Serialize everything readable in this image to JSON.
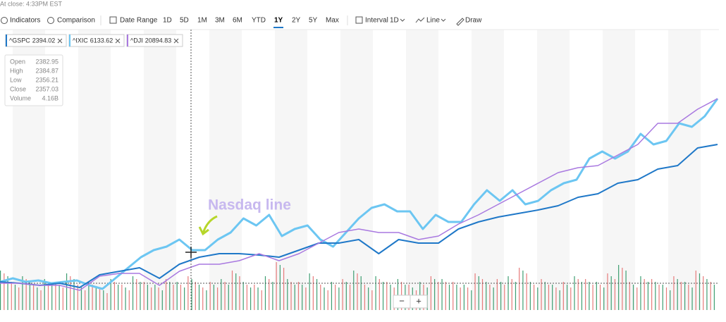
{
  "header": {
    "status": "At close: 4:33PM EST"
  },
  "toolbar": {
    "indicators": "Indicators",
    "comparison": "Comparison",
    "date_range": "Date Range",
    "ranges": [
      "1D",
      "5D",
      "1M",
      "3M",
      "6M",
      "YTD",
      "1Y",
      "2Y",
      "5Y",
      "Max"
    ],
    "active_range": "1Y",
    "interval": "Interval",
    "interval_value": "1D",
    "line": "Line",
    "draw": "Draw"
  },
  "legend": [
    {
      "symbol": "^GSPC",
      "price": "2394.02",
      "color": "#1f78c8"
    },
    {
      "symbol": "^IXIC",
      "price": "6133.62",
      "color": "#6cc6f2"
    },
    {
      "symbol": "^DJI",
      "price": "20894.83",
      "color": "#a979e0"
    }
  ],
  "tooltip": {
    "rows": [
      [
        "Open",
        "2382.95"
      ],
      [
        "High",
        "2384.87"
      ],
      [
        "Low",
        "2356.21"
      ],
      [
        "Close",
        "2357.03"
      ],
      [
        "Volume",
        "4.16B"
      ]
    ]
  },
  "annotation": "Nasdaq line",
  "zoom": {
    "minus": "−",
    "plus": "+"
  },
  "chart": {
    "ylim": [
      0,
      100
    ],
    "series": [
      {
        "name": "^IXIC",
        "color": "#6cc6f2",
        "values": [
          10,
          11.25,
          10,
          10.5,
          9.5,
          10,
          10.5,
          8.75,
          7.5,
          11.25,
          15,
          18.75,
          21.25,
          22.5,
          25,
          21.25,
          21.25,
          25,
          27.5,
          32.5,
          30,
          33.75,
          26.25,
          28.75,
          30,
          25,
          22.5,
          27.5,
          32.5,
          36.25,
          37.5,
          35,
          35,
          28.75,
          33.75,
          31.25,
          31.25,
          37.5,
          42.5,
          38.75,
          42.5,
          37.5,
          38.75,
          42.5,
          45,
          46.25,
          53.75,
          56.25,
          53.75,
          56.25,
          62.5,
          58.75,
          60,
          66.25,
          65,
          68.75,
          75
        ]
      },
      {
        "name": "^GSPC",
        "color": "#1f78c8",
        "values": [
          10,
          9.5,
          8.75,
          9.5,
          8,
          12.5,
          13.75,
          15,
          11.25,
          16.25,
          18.75,
          20,
          20,
          19.5,
          18.75,
          21.25,
          23.75,
          23.75,
          25,
          20,
          25,
          23.75,
          23.75,
          28.75,
          31.25,
          33,
          34.25,
          35.5,
          37,
          40,
          41.25,
          45,
          46.25,
          50,
          51.25,
          57.5,
          58.75
        ]
      },
      {
        "name": "^DJI",
        "color": "#a979e0",
        "values": [
          9.5,
          9.5,
          8.75,
          8.75,
          7,
          12,
          13,
          13,
          8.75,
          13.75,
          16.25,
          16.25,
          17.5,
          20,
          17.5,
          20,
          23.75,
          27.5,
          28.75,
          27.5,
          27.5,
          25,
          26.25,
          30.5,
          33.75,
          37.5,
          41.25,
          45,
          48.75,
          50.5,
          51.25,
          55,
          58.75,
          66.25,
          66.25,
          71.25,
          75
        ]
      }
    ],
    "volume_colors": [
      "#3f9e72",
      "#e77b7b"
    ],
    "volume": [
      14,
      10,
      12,
      9,
      11,
      10,
      13,
      9,
      10,
      8,
      11,
      9,
      12,
      10,
      9,
      11,
      10,
      12,
      9,
      10,
      11,
      14,
      10,
      9,
      12,
      17,
      11,
      10,
      13,
      9,
      10,
      11,
      14,
      9,
      12,
      10,
      11,
      9,
      10,
      12,
      11,
      10,
      9,
      13,
      10,
      11,
      12,
      15,
      10,
      11,
      9,
      10,
      12,
      11,
      10,
      13,
      16,
      10,
      12,
      11,
      9,
      12,
      10,
      14,
      11
    ]
  }
}
